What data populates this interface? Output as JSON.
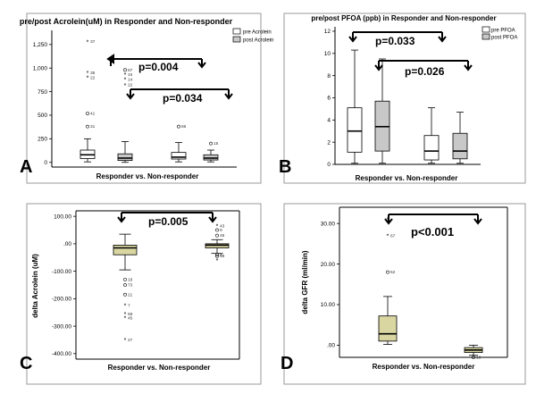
{
  "figure_labels": [
    "A",
    "B",
    "C",
    "D"
  ],
  "colors": {
    "white_box": "#ffffff",
    "gray_box": "#c8c8c8",
    "tan_box": "#d9d6a2",
    "frame": "#888888",
    "line": "#000000"
  },
  "chart_data": [
    {
      "id": "A",
      "type": "box",
      "title": "pre/post Acrolein(uM) in Responder and Non-responder",
      "xlabel": "Responder vs. Non-responder",
      "ylabel": "",
      "ylim": [
        -50,
        1400
      ],
      "yticks": [
        0,
        250,
        500,
        750,
        1000,
        1250
      ],
      "ytick_labels": [
        "0",
        "250",
        "500",
        "750",
        "1,000",
        "1,250"
      ],
      "legend": [
        "pre Acrolein",
        "post Acrolein"
      ],
      "legend_position": "top-right",
      "boxes": [
        {
          "group": "Responder",
          "series": "pre Acrolein",
          "fill": "white",
          "q1": 40,
          "median": 80,
          "q3": 130,
          "whisker_low": 5,
          "whisker_high": 250
        },
        {
          "group": "Responder",
          "series": "post Acrolein",
          "fill": "gray",
          "q1": 20,
          "median": 45,
          "q3": 90,
          "whisker_low": 0,
          "whisker_high": 220
        },
        {
          "group": "Non-responder",
          "series": "pre Acrolein",
          "fill": "white",
          "q1": 35,
          "median": 55,
          "q3": 105,
          "whisker_low": 5,
          "whisker_high": 210
        },
        {
          "group": "Non-responder",
          "series": "post Acrolein",
          "fill": "gray",
          "q1": 25,
          "median": 45,
          "q3": 80,
          "whisker_low": 5,
          "whisker_high": 130
        }
      ],
      "outliers": [
        {
          "box": 0,
          "y": 1280,
          "marker": "*",
          "label": "37"
        },
        {
          "box": 0,
          "y": 950,
          "marker": "*",
          "label": "35"
        },
        {
          "box": 0,
          "y": 900,
          "marker": "*",
          "label": "22"
        },
        {
          "box": 0,
          "y": 520,
          "marker": "o",
          "label": "41"
        },
        {
          "box": 0,
          "y": 380,
          "marker": "o",
          "label": "31"
        },
        {
          "box": 1,
          "y": 980,
          "marker": "o",
          "label": "67"
        },
        {
          "box": 1,
          "y": 930,
          "marker": "*",
          "label": "34"
        },
        {
          "box": 1,
          "y": 880,
          "marker": "*",
          "label": "14"
        },
        {
          "box": 1,
          "y": 820,
          "marker": "*",
          "label": "22"
        },
        {
          "box": 2,
          "y": 380,
          "marker": "o",
          "label": "66"
        },
        {
          "box": 3,
          "y": 200,
          "marker": "o",
          "label": "15"
        }
      ],
      "annotations": [
        {
          "text": "p=0.004",
          "between": [
            1,
            3
          ]
        },
        {
          "text": "p=0.034",
          "between": [
            1,
            3
          ],
          "second": true
        }
      ]
    },
    {
      "id": "B",
      "type": "box",
      "title": "pre/post PFOA (ppb) in Responder and Non-responder",
      "xlabel": "Responder vs. Non-responder",
      "ylabel": "",
      "ylim": [
        0,
        12.4
      ],
      "yticks": [
        0,
        2,
        4,
        6,
        8,
        10,
        12
      ],
      "ytick_labels": [
        "0",
        "2",
        "4",
        "6",
        "8",
        "10",
        "12"
      ],
      "legend": [
        "pre PFOA",
        "post PFOA"
      ],
      "legend_position": "top-right",
      "boxes": [
        {
          "group": "Responder",
          "series": "pre PFOA",
          "fill": "white",
          "q1": 1.1,
          "median": 3.0,
          "q3": 5.1,
          "whisker_low": 0.1,
          "whisker_high": 10.3
        },
        {
          "group": "Responder",
          "series": "post PFOA",
          "fill": "gray",
          "q1": 1.2,
          "median": 3.4,
          "q3": 5.7,
          "whisker_low": 0.1,
          "whisker_high": 9.5
        },
        {
          "group": "Non-responder",
          "series": "pre PFOA",
          "fill": "white",
          "q1": 0.4,
          "median": 1.2,
          "q3": 2.6,
          "whisker_low": 0.1,
          "whisker_high": 5.1
        },
        {
          "group": "Non-responder",
          "series": "post PFOA",
          "fill": "gray",
          "q1": 0.5,
          "median": 1.2,
          "q3": 2.8,
          "whisker_low": 0.1,
          "whisker_high": 4.7
        }
      ],
      "outliers": [],
      "annotations": [
        {
          "text": "p=0.033",
          "between": [
            0,
            2
          ]
        },
        {
          "text": "p=0.026",
          "between": [
            1,
            3
          ]
        }
      ]
    },
    {
      "id": "C",
      "type": "box",
      "title": "",
      "xlabel": "Responder vs. Non-responder",
      "ylabel": "delta Acrolein (uM)",
      "ylim": [
        -420,
        120
      ],
      "yticks": [
        -400,
        -300,
        -200,
        -100,
        0,
        100
      ],
      "ytick_labels": [
        "-400.00",
        "-300.00",
        "-200.00",
        "-100.00",
        ".00",
        "100.00"
      ],
      "legend": [],
      "boxes": [
        {
          "group": "Responder",
          "fill": "tan",
          "q1": -40,
          "median": -15,
          "q3": -5,
          "whisker_low": -95,
          "whisker_high": 35
        },
        {
          "group": "Non-responder",
          "fill": "tan",
          "q1": -15,
          "median": -5,
          "q3": 0,
          "whisker_low": -35,
          "whisker_high": 15
        }
      ],
      "outliers": [
        {
          "box": 0,
          "y": -130,
          "marker": "o",
          "label": "19"
        },
        {
          "box": 0,
          "y": -150,
          "marker": "o",
          "label": "73"
        },
        {
          "box": 0,
          "y": -185,
          "marker": "o",
          "label": "21"
        },
        {
          "box": 0,
          "y": -225,
          "marker": "*",
          "label": "7"
        },
        {
          "box": 0,
          "y": -255,
          "marker": "*",
          "label": "59"
        },
        {
          "box": 0,
          "y": -270,
          "marker": "*",
          "label": "45"
        },
        {
          "box": 0,
          "y": -350,
          "marker": "*",
          "label": "27"
        },
        {
          "box": 1,
          "y": 65,
          "marker": "*",
          "label": "43"
        },
        {
          "box": 1,
          "y": 50,
          "marker": "o",
          "label": "9"
        },
        {
          "box": 1,
          "y": 30,
          "marker": "o",
          "label": "46"
        },
        {
          "box": 1,
          "y": -40,
          "marker": "o",
          "label": "4"
        },
        {
          "box": 1,
          "y": -45,
          "marker": "o",
          "label": "58"
        },
        {
          "box": 1,
          "y": -60,
          "marker": "*",
          "label": ""
        }
      ],
      "annotations": [
        {
          "text": "p=0.005",
          "between": [
            0,
            1
          ]
        }
      ]
    },
    {
      "id": "D",
      "type": "box",
      "title": "",
      "xlabel": "Responder vs. Non-responder",
      "ylabel": "delta GFR (ml/min)",
      "ylim": [
        -3,
        34
      ],
      "yticks": [
        0,
        10,
        20,
        30
      ],
      "ytick_labels": [
        ".00",
        "10.00",
        "20.00",
        "30.00"
      ],
      "legend": [],
      "boxes": [
        {
          "group": "Responder",
          "fill": "tan",
          "q1": 1,
          "median": 2.8,
          "q3": 7.2,
          "whisker_low": 0.2,
          "whisker_high": 12
        },
        {
          "group": "Non-responder",
          "fill": "tan",
          "q1": -1.8,
          "median": -1.2,
          "q3": -0.6,
          "whisker_low": -2.5,
          "whisker_high": 0
        }
      ],
      "outliers": [
        {
          "box": 0,
          "y": 31,
          "marker": "*",
          "label": ""
        },
        {
          "box": 0,
          "y": 27,
          "marker": "*",
          "label": "67"
        },
        {
          "box": 0,
          "y": 18,
          "marker": "o",
          "label": "52"
        },
        {
          "box": 1,
          "y": -3,
          "marker": "o",
          "label": "10"
        }
      ],
      "annotations": [
        {
          "text": "p<0.001",
          "between": [
            0,
            1
          ]
        }
      ]
    }
  ]
}
